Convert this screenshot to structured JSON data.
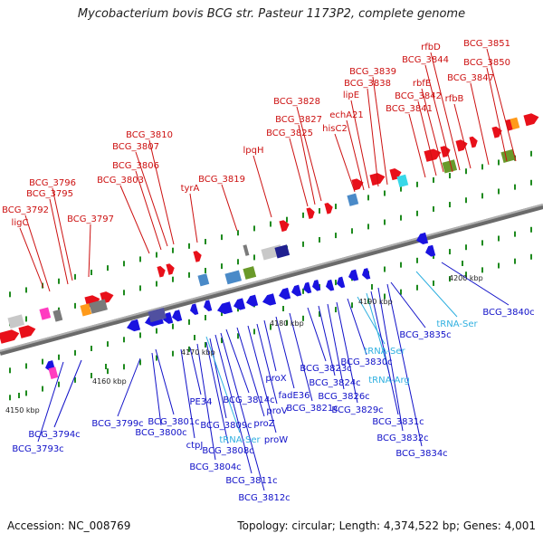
{
  "title": "Mycobacterium bovis BCG str. Pasteur 1173P2, complete genome",
  "footer": {
    "accession": "Accession: NC_008769",
    "summary": "Topology: circular; Length: 4,374,522 bp; Genes: 4,001"
  },
  "scale_ticks": [
    {
      "label": "4150 kbp"
    },
    {
      "label": "4160 kbp"
    },
    {
      "label": "4170 kbp"
    },
    {
      "label": "4180 kbp"
    },
    {
      "label": "4190 kbp"
    },
    {
      "label": "4200 kbp"
    }
  ],
  "top_labels": [
    "BCG_3792",
    "ligC",
    "BCG_3796",
    "BCG_3795",
    "BCG_3797",
    "BCG_3803",
    "BCG_3806",
    "BCG_3807",
    "BCG_3810",
    "tyrA",
    "BCG_3819",
    "lpqH",
    "BCG_3825",
    "BCG_3827",
    "BCG_3828",
    "hisC2",
    "echA21",
    "lipE",
    "BCG_3838",
    "BCG_3839",
    "BCG_3841",
    "BCG_3842",
    "rbfE",
    "rfbB",
    "BCG_3847",
    "BCG_3844",
    "rfbD",
    "BCG_3850",
    "BCG_3851"
  ],
  "bottom_labels": [
    "BCG_3793c",
    "BCG_3794c",
    "BCG_3799c",
    "BCG_3800c",
    "BCG_3801c",
    "ctpJ",
    "PE34",
    "BCG_3804c",
    "BCG_3808c",
    "BCG_3809c",
    "tRNA-Ser",
    "BCG_3811c",
    "BCG_3812c",
    "BCG_3814c",
    "proZ",
    "proW",
    "proV",
    "proX",
    "fadE36",
    "BCG_3821c",
    "BCG_3823c",
    "BCG_3824c",
    "BCG_3826c",
    "BCG_3829c",
    "BCG_3830c",
    "tRNA-Ser",
    "tRNA-Arg",
    "BCG_3831c",
    "BCG_3832c",
    "BCG_3834c",
    "BCG_3835c",
    "tRNA-Ser",
    "BCG_3840c"
  ],
  "colors": {
    "forward_gene": "#e8101a",
    "reverse_gene": "#1a13e0",
    "top_label": "#cc1010",
    "bottom_label": "#1010c8",
    "trna_label": "#30b0e0",
    "backbone": "#8a8a8a",
    "tick": "#1e8a1e"
  }
}
